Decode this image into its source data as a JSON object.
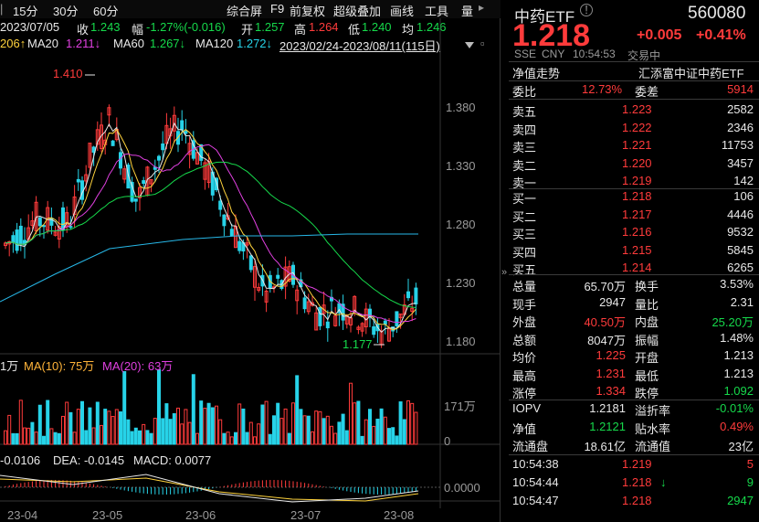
{
  "toolbar": {
    "periods": [
      "15分",
      "30分",
      "60分"
    ],
    "date": "2023/07/05",
    "close_label": "收",
    "close_value": "1.243",
    "change_label": "幅",
    "change_value": "-1.27%(-0.016)",
    "open_label": "开",
    "open_value": "1.257",
    "high_label": "高",
    "high_value": "1.264",
    "low_label": "低",
    "low_value": "1.240",
    "avg_label": "均",
    "avg_value": "1.246",
    "menu": [
      "综合屏",
      "F9",
      "前复权",
      "超级叠加",
      "画线",
      "工具"
    ],
    "vol_label": "量"
  },
  "ma_line": {
    "ma10_val": "206↑",
    "ma20": "MA20",
    "ma20_val": "1.211↓",
    "ma60": "MA60",
    "ma60_val": "1.267↓",
    "ma120": "MA120",
    "ma120_val": "1.272↓",
    "range": "2023/02/24-2023/08/11(115日)"
  },
  "price_axis": [
    "1.380",
    "1.330",
    "1.280",
    "1.230",
    "1.180"
  ],
  "annotations": {
    "high": "1.410",
    "low": "1.177"
  },
  "vol_line": {
    "ma5_val": "1万",
    "ma10": "MA(10): 75万",
    "ma20": "MA(20): 63万",
    "axis_top": "171万",
    "axis_zero": "0"
  },
  "macd_line": {
    "diff_val": "-0.0106",
    "dea": "DEA: -0.0145",
    "macd": "MACD: 0.0077",
    "axis_zero": "0.0000"
  },
  "date_axis": [
    "23-04",
    "23-05",
    "23-06",
    "23-07",
    "23-08"
  ],
  "quote": {
    "name": "中药ETF",
    "code": "560080",
    "price": "1.218",
    "change": "+0.005",
    "change_pct": "+0.41%",
    "market": "SSE",
    "currency": "CNY",
    "time": "10:54:53",
    "status": "交易中",
    "trend_label": "净值走势",
    "fund_name": "汇添富中证中药ETF",
    "weibi_label": "委比",
    "weibi": "12.73%",
    "weicha_label": "委差",
    "weicha": "5914",
    "asks": [
      {
        "label": "卖五",
        "price": "1.223",
        "vol": "2582"
      },
      {
        "label": "卖四",
        "price": "1.222",
        "vol": "2346"
      },
      {
        "label": "卖三",
        "price": "1.221",
        "vol": "11753"
      },
      {
        "label": "卖二",
        "price": "1.220",
        "vol": "3457"
      },
      {
        "label": "卖一",
        "price": "1.219",
        "vol": "142"
      }
    ],
    "bids": [
      {
        "label": "买一",
        "price": "1.218",
        "vol": "106"
      },
      {
        "label": "买二",
        "price": "1.217",
        "vol": "4446"
      },
      {
        "label": "买三",
        "price": "1.216",
        "vol": "9532"
      },
      {
        "label": "买四",
        "price": "1.215",
        "vol": "5845"
      },
      {
        "label": "买五",
        "price": "1.214",
        "vol": "6265"
      }
    ],
    "stats": [
      {
        "l1": "总量",
        "v1": "65.70万",
        "c1": "white",
        "l2": "换手",
        "v2": "3.53%",
        "c2": "white"
      },
      {
        "l1": "现手",
        "v1": "2947",
        "c1": "white",
        "l2": "量比",
        "v2": "2.31",
        "c2": "white"
      },
      {
        "l1": "外盘",
        "v1": "40.50万",
        "c1": "red",
        "l2": "内盘",
        "v2": "25.20万",
        "c2": "green"
      },
      {
        "l1": "总额",
        "v1": "8047万",
        "c1": "white",
        "l2": "振幅",
        "v2": "1.48%",
        "c2": "white"
      },
      {
        "l1": "均价",
        "v1": "1.225",
        "c1": "red",
        "l2": "开盘",
        "v2": "1.213",
        "c2": "white"
      },
      {
        "l1": "最高",
        "v1": "1.231",
        "c1": "red",
        "l2": "最低",
        "v2": "1.213",
        "c2": "white"
      },
      {
        "l1": "涨停",
        "v1": "1.334",
        "c1": "red",
        "l2": "跌停",
        "v2": "1.092",
        "c2": "green"
      }
    ],
    "iopv": [
      {
        "l1": "IOPV",
        "v1": "1.2181",
        "c1": "white",
        "l2": "溢折率",
        "v2": "-0.01%",
        "c2": "green"
      },
      {
        "l1": "净值",
        "v1": "1.2121",
        "c1": "green",
        "l2": "贴水率",
        "v2": "0.49%",
        "c2": "red"
      },
      {
        "l1": "流通盘",
        "v1": "18.61亿",
        "c1": "white",
        "l2": "流通值",
        "v2": "23亿",
        "c2": "white"
      }
    ],
    "ticks": [
      {
        "time": "10:54:38",
        "price": "1.219",
        "arrow": "",
        "vol": "5",
        "pc": "red",
        "vc": "red"
      },
      {
        "time": "10:54:44",
        "price": "1.218",
        "arrow": "↓",
        "vol": "9",
        "pc": "red",
        "vc": "green"
      },
      {
        "time": "10:54:47",
        "price": "1.218",
        "arrow": "",
        "vol": "2947",
        "pc": "red",
        "vc": "green"
      }
    ]
  },
  "colors": {
    "up": "#ff3b3b",
    "down": "#27d3e8",
    "ma5": "#e8e8e8",
    "ma10": "#ffd33d",
    "ma20": "#e040e0",
    "ma60": "#16d94b",
    "ma120": "#27b8e8"
  }
}
